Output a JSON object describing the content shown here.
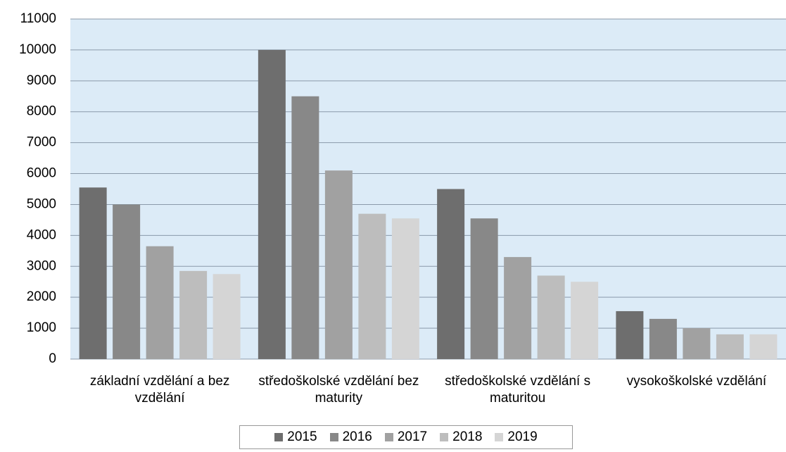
{
  "chart_data": {
    "type": "bar",
    "categories": [
      "základní vzdělání a bez vzdělání",
      "středoškolské vzdělání bez maturity",
      "středoškolské vzdělání s maturitou",
      "vysokoškolské vzdělání"
    ],
    "series": [
      {
        "name": "2015",
        "color": "#6e6e6e",
        "values": [
          5550,
          10000,
          5500,
          1550
        ]
      },
      {
        "name": "2016",
        "color": "#888888",
        "values": [
          5000,
          8500,
          4550,
          1300
        ]
      },
      {
        "name": "2017",
        "color": "#a1a1a1",
        "values": [
          3650,
          6100,
          3300,
          1000
        ]
      },
      {
        "name": "2018",
        "color": "#bdbdbd",
        "values": [
          2850,
          4700,
          2700,
          800
        ]
      },
      {
        "name": "2019",
        "color": "#d5d5d5",
        "values": [
          2750,
          4550,
          2500,
          800
        ]
      }
    ],
    "ylim": [
      0,
      11000
    ],
    "yticks": [
      0,
      1000,
      2000,
      3000,
      4000,
      5000,
      6000,
      7000,
      8000,
      9000,
      10000,
      11000
    ],
    "grid": true,
    "legend": "bottom"
  }
}
